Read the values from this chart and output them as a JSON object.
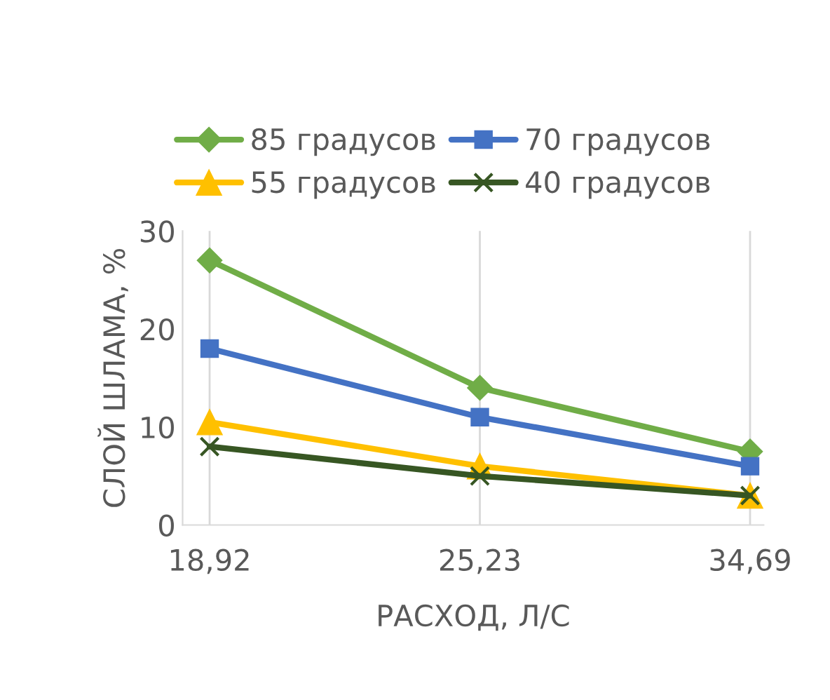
{
  "chart_data": {
    "type": "line",
    "xlabel": "РАСХОД, Л/С",
    "ylabel": "СЛОЙ ШЛАМА, %",
    "categories": [
      "18,92",
      "25,23",
      "34,69"
    ],
    "series": [
      {
        "name": "85 градусов",
        "color": "#70ad47",
        "marker": "diamond",
        "values": [
          27,
          14,
          7.5
        ]
      },
      {
        "name": "70 градусов",
        "color": "#4472c4",
        "marker": "square",
        "values": [
          18,
          11,
          6
        ]
      },
      {
        "name": "55 градусов",
        "color": "#ffc000",
        "marker": "triangle",
        "values": [
          10.5,
          6,
          3
        ]
      },
      {
        "name": "40 градусов",
        "color": "#375623",
        "marker": "cross",
        "values": [
          8,
          5,
          3
        ]
      }
    ],
    "ylim": [
      0,
      30
    ],
    "yticks": [
      0,
      10,
      20,
      30
    ],
    "grid": "x",
    "legend": "top",
    "line_style": "solid"
  }
}
